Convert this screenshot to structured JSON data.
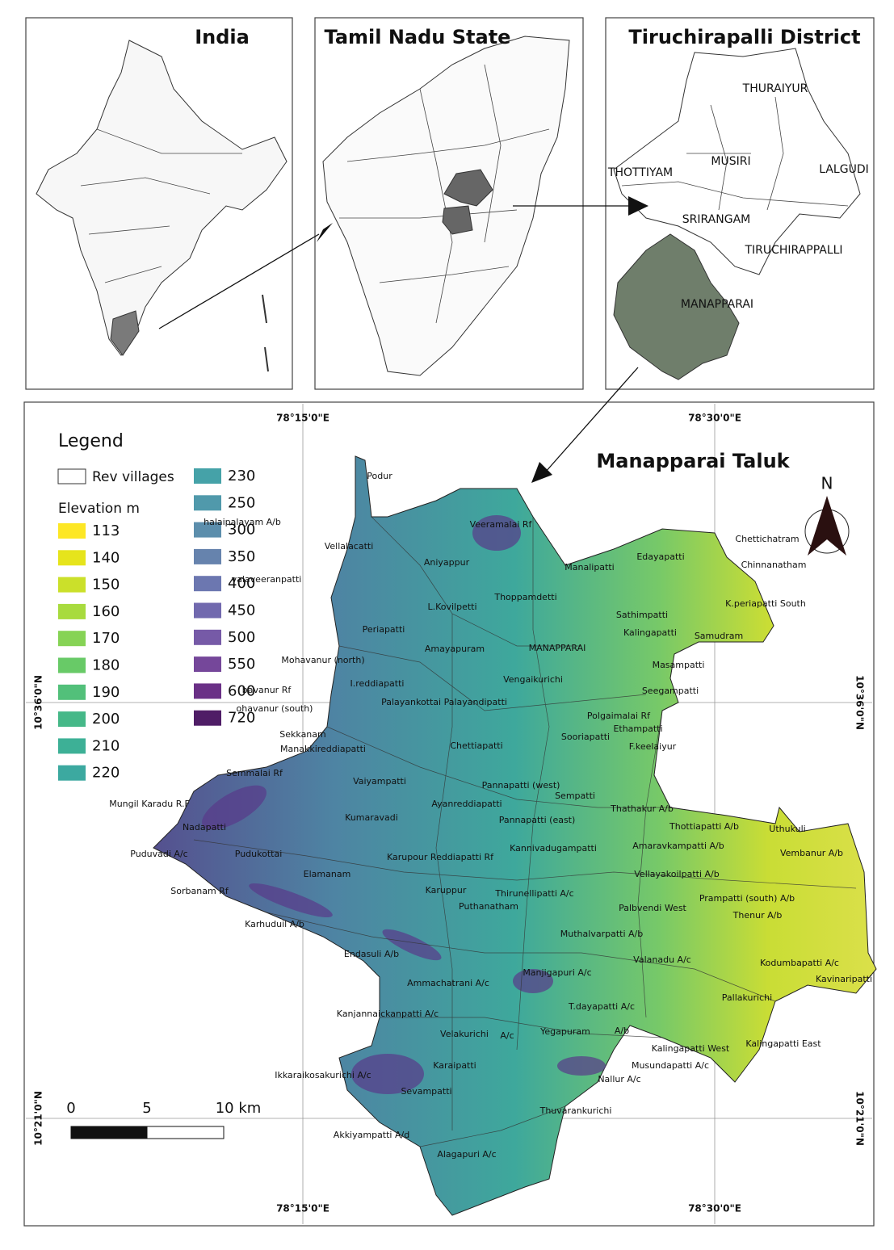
{
  "panels": {
    "india": "India",
    "tamil_nadu": "Tamil Nadu State",
    "district": "Tiruchirapalli District",
    "taluk": "Manapparai Taluk"
  },
  "district_labels": [
    "THURAIYUR",
    "MUSIRI",
    "THOTTIYAM",
    "LALGUDI",
    "SRIRANGAM",
    "TIRUCHIRAPPALLI",
    "MANAPPARAI"
  ],
  "legend": {
    "title": "Legend",
    "villages": "Rev villages",
    "elevation_title": "Elevation m",
    "items": [
      {
        "value": 113,
        "color": "#fde725"
      },
      {
        "value": 140,
        "color": "#e6e41c"
      },
      {
        "value": 150,
        "color": "#cbe02a"
      },
      {
        "value": 160,
        "color": "#a8db3e"
      },
      {
        "value": 170,
        "color": "#86d355"
      },
      {
        "value": 180,
        "color": "#68ca67"
      },
      {
        "value": 190,
        "color": "#52c07a"
      },
      {
        "value": 200,
        "color": "#45b888"
      },
      {
        "value": 210,
        "color": "#3db096"
      },
      {
        "value": 220,
        "color": "#3ca9a0"
      },
      {
        "value": 230,
        "color": "#45a2a8"
      },
      {
        "value": 250,
        "color": "#5099ab"
      },
      {
        "value": 300,
        "color": "#5c8eac"
      },
      {
        "value": 350,
        "color": "#6683ad"
      },
      {
        "value": 400,
        "color": "#6c77b0"
      },
      {
        "value": 450,
        "color": "#7169ae"
      },
      {
        "value": 500,
        "color": "#765aa7"
      },
      {
        "value": 550,
        "color": "#75479a"
      },
      {
        "value": 600,
        "color": "#6a3086"
      },
      {
        "value": 720,
        "color": "#4f1d66"
      }
    ]
  },
  "coordinates": {
    "top": [
      "78°15'0\"E",
      "78°30'0\"E"
    ],
    "bottom": [
      "78°15'0\"E",
      "78°30'0\"E"
    ],
    "left": [
      "10°36'0\"N",
      "10°21'0\"N"
    ],
    "right": [
      "10°36'0\"N",
      "10°21'0\"N"
    ]
  },
  "scale_bar": {
    "labels": [
      "0",
      "5",
      "10 km"
    ]
  },
  "north": "N",
  "villages": [
    "Podur",
    "halaipalayam A/b",
    "Vellalacatti",
    "valaveeranpatti",
    "Veeramalai Rf",
    "Aniyappur",
    "Manalipatti",
    "Edayapatti",
    "Chettichatram",
    "Chinnanatham",
    "Thoppamdetti",
    "L.Kovilpetti",
    "K.periapatti South",
    "Sathimpatti",
    "Kalingapatti",
    "Samudram",
    "Periapatti",
    "Amayapuram",
    "MANAPPARAI",
    "Mohavanur (north)",
    "Masampatti",
    "Vengaikurichi",
    "I.reddiapatti",
    "Seegampatti",
    "bavanur Rf",
    "ohavanur (south)",
    "Palayankottai Palayandipatti",
    "Polgaimalai Rf",
    "Ethampatti",
    "Sooriapatti",
    "Sekkanam",
    "Manakkireddiapatti",
    "Chettiapatti",
    "F.keelaiyur",
    "Semmalai Rf",
    "Vaiyampatti",
    "Pannapatti (west)",
    "Mungil Karadu R.F",
    "Sempatti",
    "Ayanreddiapatti",
    "Thathakur A/b",
    "Kumaravadi",
    "Pannapatti (east)",
    "Nadapatti",
    "Thottiapatti A/b",
    "Uthukuli",
    "Amaravkampatti A/b",
    "Kannivadugampatti",
    "Puduvadi A/c",
    "Pudukottai",
    "Karupour Reddiapatti Rf",
    "Vembanur A/b",
    "Elamanam",
    "Vellayakoilpatti A/b",
    "Sorbanam Rf",
    "Karuppur",
    "Prampatti (south) A/b",
    "Thirunellipatti A/c",
    "Puthanatham",
    "Palbvendi West",
    "Thenur A/b",
    "Karhuduil A/b",
    "Muthalvarpatti A/b",
    "Endasuli A/b",
    "Valanadu A/c",
    "Kodumbapatti A/c",
    "Manjigapuri A/c",
    "Kavinaripatti",
    "Ammachatrani A/c",
    "Pallakurichi",
    "T.dayapatti A/c",
    "Kanjannaickanpatti A/c",
    "Velakurichi",
    "A/c",
    "Yegapuram",
    "A/b",
    "Kalingapatti West",
    "Kalingapatti East",
    "Karaipatti",
    "Ikkaraikosakurichi A/c",
    "Musundapatti A/c",
    "Nallur A/c",
    "Sevampatti",
    "Thuvarankurichi",
    "Akkiyampatti A/d",
    "Alagapuri A/c"
  ]
}
